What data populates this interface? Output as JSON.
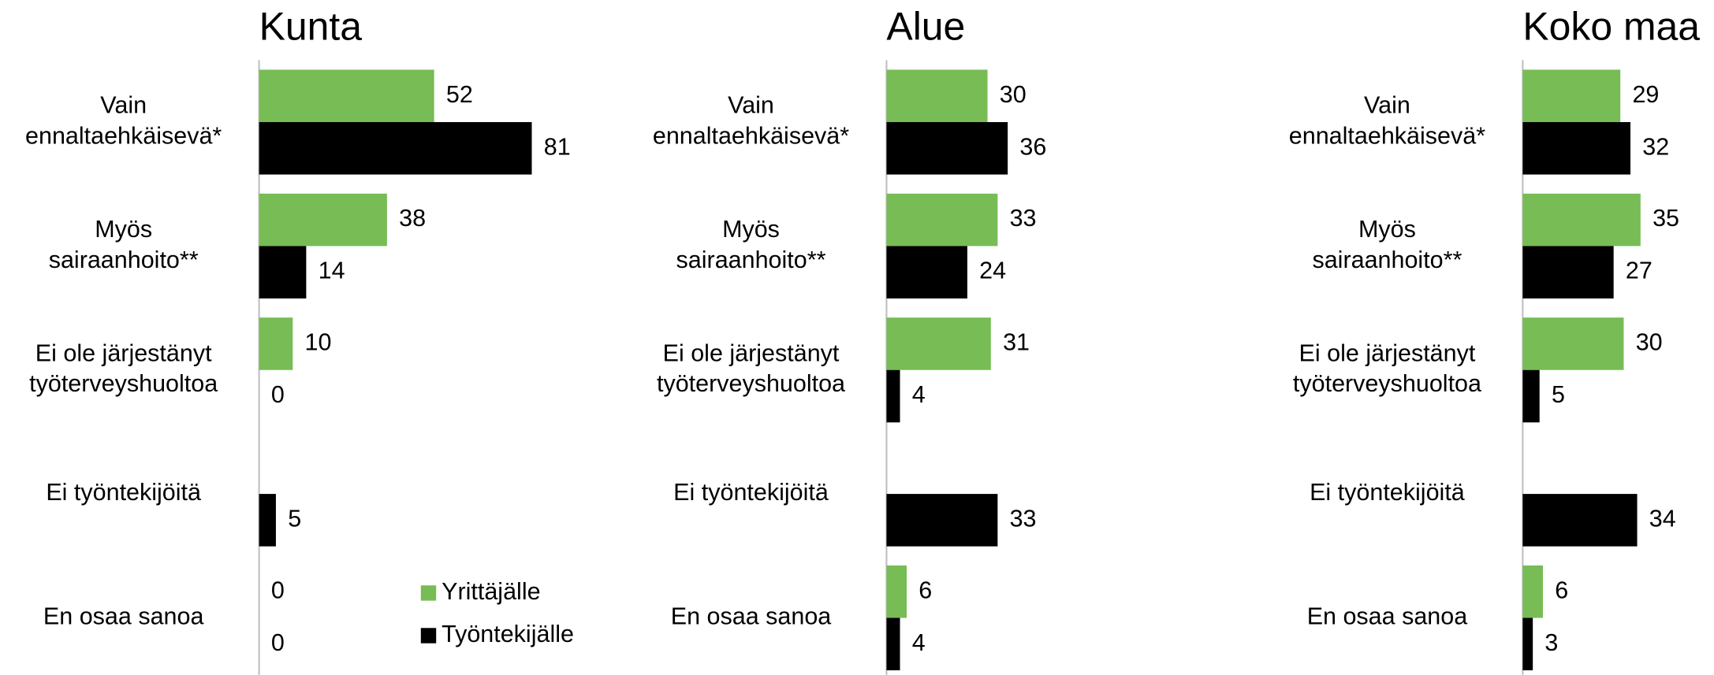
{
  "chart_data": [
    {
      "type": "bar",
      "orientation": "horizontal",
      "title": "Kunta",
      "categories": [
        [
          "Vain",
          "ennaltaehkäisevä*"
        ],
        [
          "Myös",
          "sairaanhoito**"
        ],
        [
          "Ei ole järjestänyt",
          "työterveyshuoltoa"
        ],
        [
          "Ei työntekijöitä"
        ],
        [
          "En osaa sanoa"
        ]
      ],
      "series": [
        {
          "name": "Yrittäjälle",
          "color": "#77bc55",
          "values": [
            52,
            38,
            10,
            null,
            0
          ]
        },
        {
          "name": "Työntekijälle",
          "color": "#000000",
          "values": [
            81,
            14,
            0,
            5,
            0
          ]
        }
      ],
      "xlim": [
        0,
        100
      ],
      "legend": "lower right"
    },
    {
      "type": "bar",
      "orientation": "horizontal",
      "title": "Alue",
      "categories": [
        [
          "Vain",
          "ennaltaehkäisevä*"
        ],
        [
          "Myös",
          "sairaanhoito**"
        ],
        [
          "Ei ole järjestänyt",
          "työterveyshuoltoa"
        ],
        [
          "Ei työntekijöitä"
        ],
        [
          "En osaa sanoa"
        ]
      ],
      "series": [
        {
          "name": "Yrittäjälle",
          "color": "#77bc55",
          "values": [
            30,
            33,
            31,
            null,
            6
          ]
        },
        {
          "name": "Työntekijälle",
          "color": "#000000",
          "values": [
            36,
            24,
            4,
            33,
            4
          ]
        }
      ],
      "xlim": [
        0,
        100
      ]
    },
    {
      "type": "bar",
      "orientation": "horizontal",
      "title": "Koko maa",
      "categories": [
        [
          "Vain",
          "ennaltaehkäisevä*"
        ],
        [
          "Myös",
          "sairaanhoito**"
        ],
        [
          "Ei ole järjestänyt",
          "työterveyshuoltoa"
        ],
        [
          "Ei työntekijöitä"
        ],
        [
          "En osaa sanoa"
        ]
      ],
      "series": [
        {
          "name": "Yrittäjälle",
          "color": "#77bc55",
          "values": [
            29,
            35,
            30,
            null,
            6
          ]
        },
        {
          "name": "Työntekijälle",
          "color": "#000000",
          "values": [
            32,
            27,
            5,
            34,
            3
          ]
        }
      ],
      "xlim": [
        0,
        100
      ]
    }
  ]
}
